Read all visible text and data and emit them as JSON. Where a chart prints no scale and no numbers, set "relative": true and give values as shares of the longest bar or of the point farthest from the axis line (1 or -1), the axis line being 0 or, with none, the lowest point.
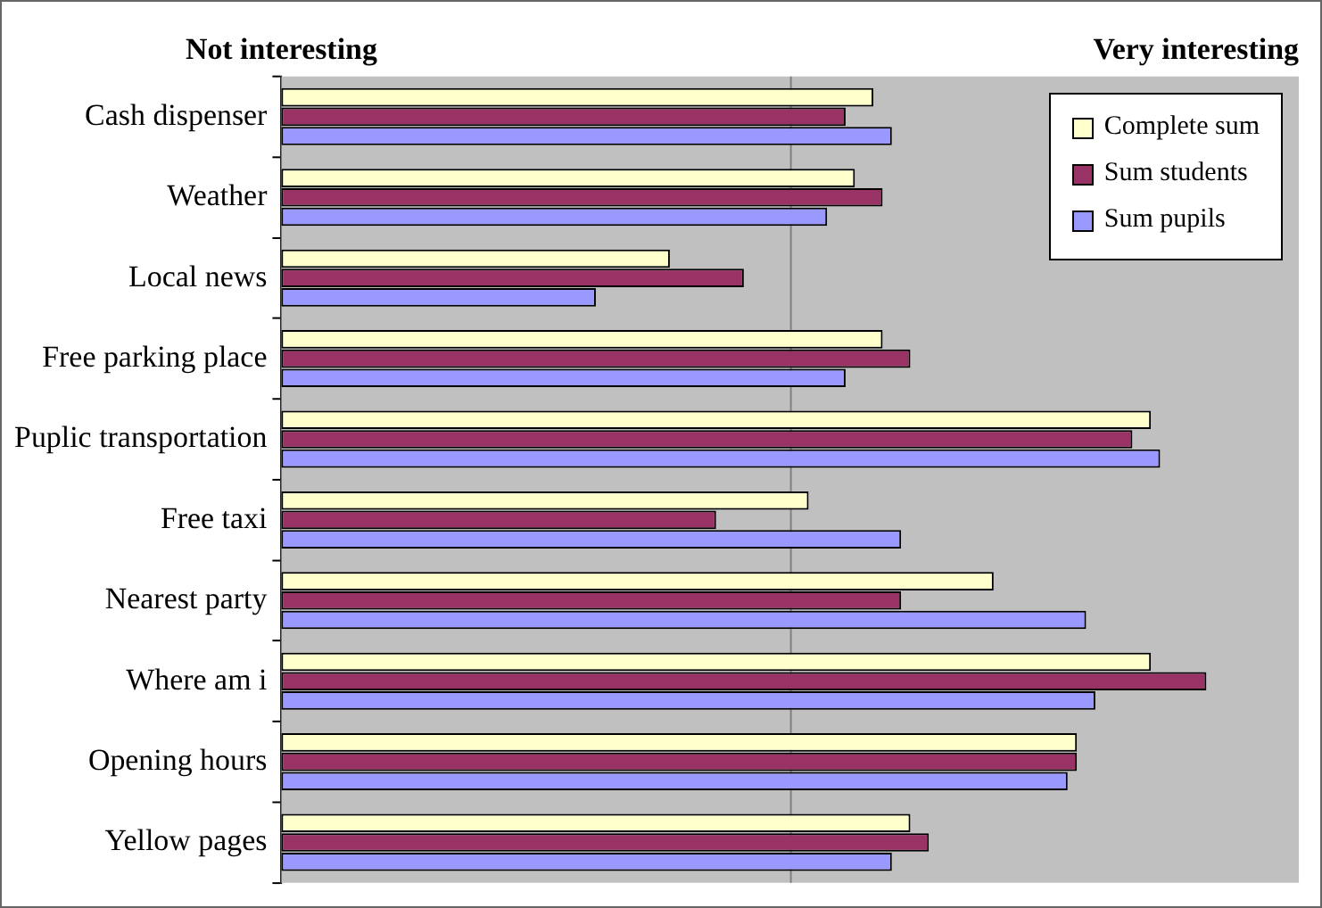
{
  "chart_data": {
    "type": "bar",
    "orientation": "horizontal",
    "relative": true,
    "legend": "top right",
    "ref_lines": [
      {
        "axis": "x",
        "value": 0.55,
        "color": "#808080"
      }
    ],
    "categories": [
      "Cash dispenser",
      "Weather",
      "Local news",
      "Free parking place",
      "Puplic transportation",
      "Free taxi",
      "Nearest party",
      "Where am i",
      "Opening hours",
      "Yellow pages"
    ],
    "series": [
      {
        "name": "Complete sum",
        "color": "#ffffcc",
        "values": [
          0.64,
          0.62,
          0.42,
          0.65,
          0.94,
          0.57,
          0.77,
          0.94,
          0.86,
          0.68
        ]
      },
      {
        "name": "Sum students",
        "color": "#993366",
        "values": [
          0.61,
          0.65,
          0.5,
          0.68,
          0.92,
          0.47,
          0.67,
          1,
          0.86,
          0.7
        ]
      },
      {
        "name": "Sum pupils",
        "color": "#9999ff",
        "values": [
          0.66,
          0.59,
          0.34,
          0.61,
          0.95,
          0.67,
          0.87,
          0.88,
          0.85,
          0.66
        ]
      }
    ],
    "annotations": [
      "Not interesting",
      "Very interesting"
    ]
  }
}
